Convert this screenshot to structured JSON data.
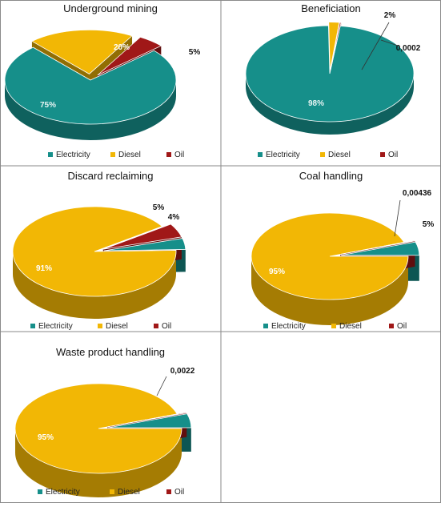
{
  "colors": {
    "Electricity": "#168f8a",
    "Diesel": "#f2b705",
    "Oil": "#a01818"
  },
  "chart_data": [
    {
      "type": "pie",
      "title": "Underground mining",
      "categories": [
        "Electricity",
        "Diesel",
        "Oil"
      ],
      "values": [
        75,
        20,
        5
      ],
      "labels": [
        "75%",
        "20%",
        "5%"
      ],
      "legend": "bottom"
    },
    {
      "type": "pie",
      "title": "Beneficiation",
      "categories": [
        "Electricity",
        "Diesel",
        "Oil"
      ],
      "values": [
        98,
        2,
        0.0002
      ],
      "labels": [
        "98%",
        "2%",
        "0,0002"
      ],
      "legend": "bottom"
    },
    {
      "type": "pie",
      "title": "Discard reclaiming",
      "categories": [
        "Electricity",
        "Diesel",
        "Oil"
      ],
      "values": [
        4,
        91,
        5
      ],
      "labels": [
        "4%",
        "91%",
        "5%"
      ],
      "legend": "bottom"
    },
    {
      "type": "pie",
      "title": "Coal handling",
      "categories": [
        "Electricity",
        "Diesel",
        "Oil"
      ],
      "values": [
        5,
        95,
        0.00436
      ],
      "labels": [
        "5%",
        "95%",
        "0,00436"
      ],
      "legend": "bottom"
    },
    {
      "type": "pie",
      "title": "Waste product handling",
      "categories": [
        "Electricity",
        "Diesel",
        "Oil"
      ],
      "values": [
        5,
        95,
        0.0022
      ],
      "labels": [
        "",
        "95%",
        "0,0022"
      ],
      "legend": "bottom"
    }
  ]
}
